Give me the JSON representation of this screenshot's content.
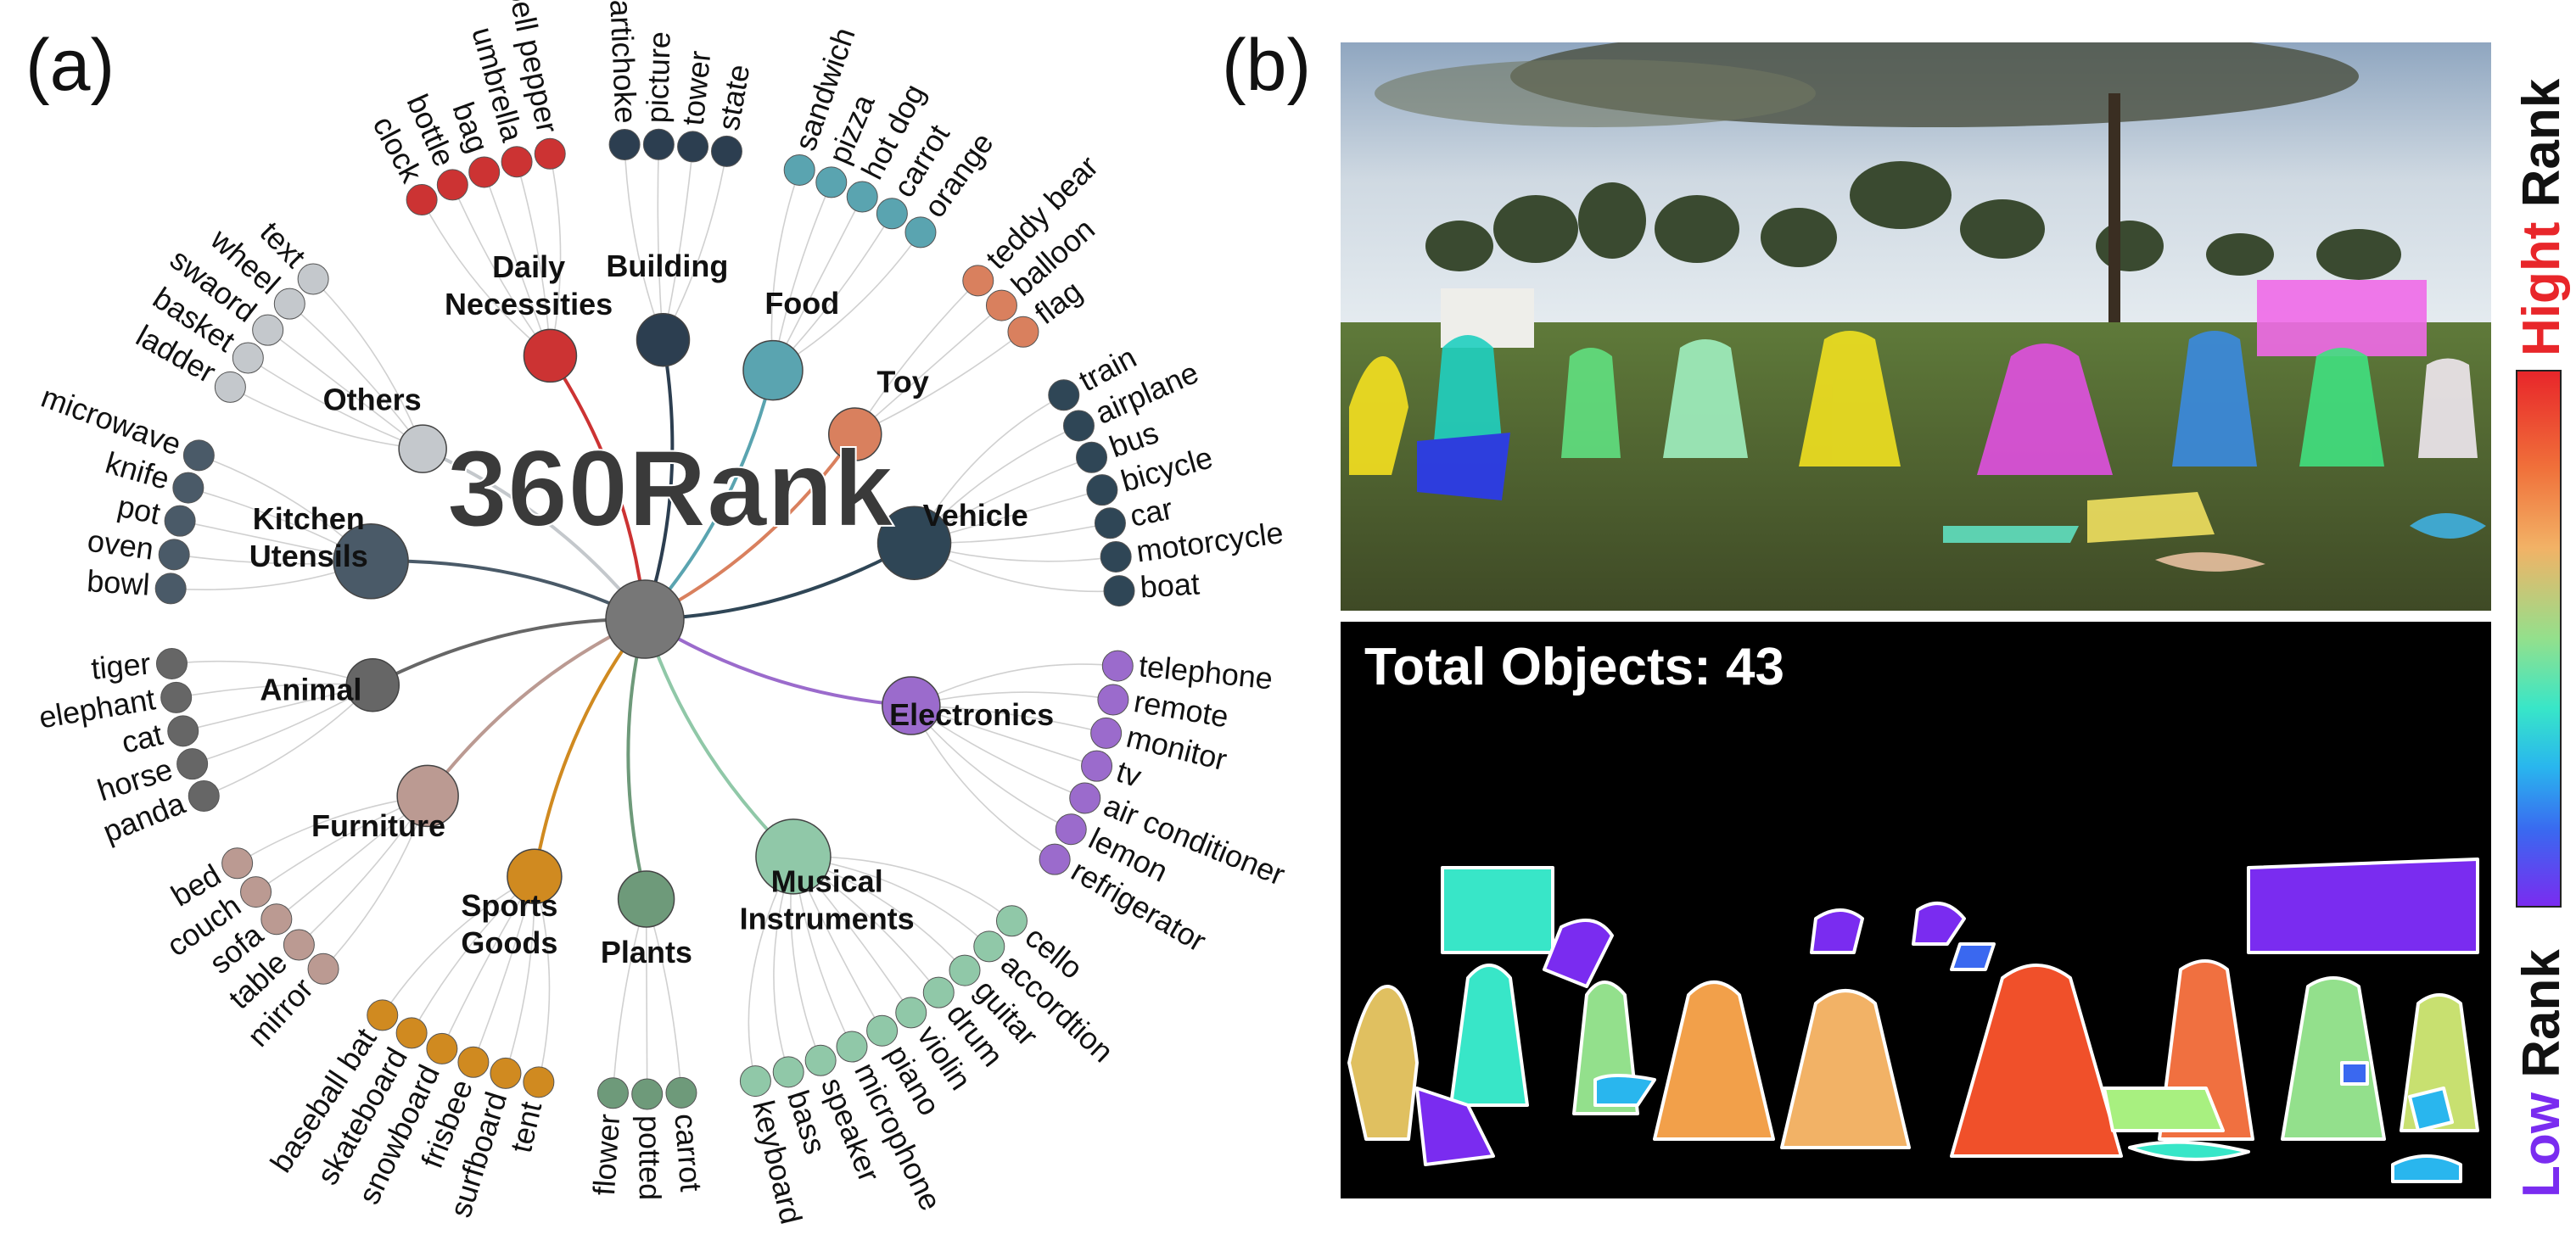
{
  "panel_a": {
    "label": "(a)",
    "center_title": "360Rank",
    "categories": [
      {
        "name": "Daily Necessities",
        "color": "#cc3333",
        "size": 50,
        "items": [
          "clock",
          "bottle",
          "bag",
          "umbrella",
          "bell pepper"
        ]
      },
      {
        "name": "Building",
        "color": "#2c3e50",
        "size": 50,
        "items": [
          "artichoke",
          "picture",
          "tower",
          "state"
        ]
      },
      {
        "name": "Food",
        "color": "#5aa4b0",
        "size": 58,
        "items": [
          "sandwich",
          "pizza",
          "hot dog",
          "carrot",
          "orange"
        ]
      },
      {
        "name": "Toy",
        "color": "#d9805e",
        "size": 50,
        "items": [
          "teddy bear",
          "balloon",
          "flag"
        ]
      },
      {
        "name": "Vehicle",
        "color": "#2f4656",
        "size": 74,
        "items": [
          "train",
          "airplane",
          "bus",
          "bicycle",
          "car",
          "motorcycle",
          "boat"
        ]
      },
      {
        "name": "Electronics",
        "color": "#9b6bcc",
        "size": 56,
        "items": [
          "telephone",
          "remote",
          "monitor",
          "tv",
          "air conditioner",
          "lemon",
          "refrigerator"
        ]
      },
      {
        "name": "Musical Instruments",
        "color": "#90c8a8",
        "size": 76,
        "items": [
          "cello",
          "accordtion",
          "guitar",
          "drum",
          "violin",
          "piano",
          "microphone",
          "speaker",
          "bass",
          "keyboard"
        ]
      },
      {
        "name": "Plants",
        "color": "#6e9a7a",
        "size": 54,
        "items": [
          "carrot",
          "potted",
          "flower"
        ]
      },
      {
        "name": "Sports Goods",
        "color": "#d08a20",
        "size": 52,
        "items": [
          "tent",
          "surfboard",
          "frisbee",
          "snowboard",
          "skateboard",
          "baseball bat"
        ]
      },
      {
        "name": "Furniture",
        "color": "#bb9a92",
        "size": 60,
        "items": [
          "mirror",
          "table",
          "sofa",
          "couch",
          "bed"
        ]
      },
      {
        "name": "Animal",
        "color": "#666666",
        "size": 50,
        "items": [
          "panda",
          "horse",
          "cat",
          "elephant",
          "tiger"
        ]
      },
      {
        "name": "Kitchen Utensils",
        "color": "#4a5a68",
        "size": 76,
        "items": [
          "bowl",
          "oven",
          "pot",
          "knife",
          "microwave"
        ]
      },
      {
        "name": "Others",
        "color": "#c4c8cc",
        "size": 44,
        "items": [
          "ladder",
          "basket",
          "swaord",
          "wheel",
          "text"
        ]
      }
    ]
  },
  "panel_b": {
    "label": "(b)",
    "total_objects_text": "Total Objects: 43",
    "colorbar": {
      "top_label": [
        "Hight",
        "Rank"
      ],
      "bottom_label": [
        "Low",
        "Rank"
      ],
      "high_color": "#e8262a",
      "low_color": "#7a2cf0"
    }
  }
}
